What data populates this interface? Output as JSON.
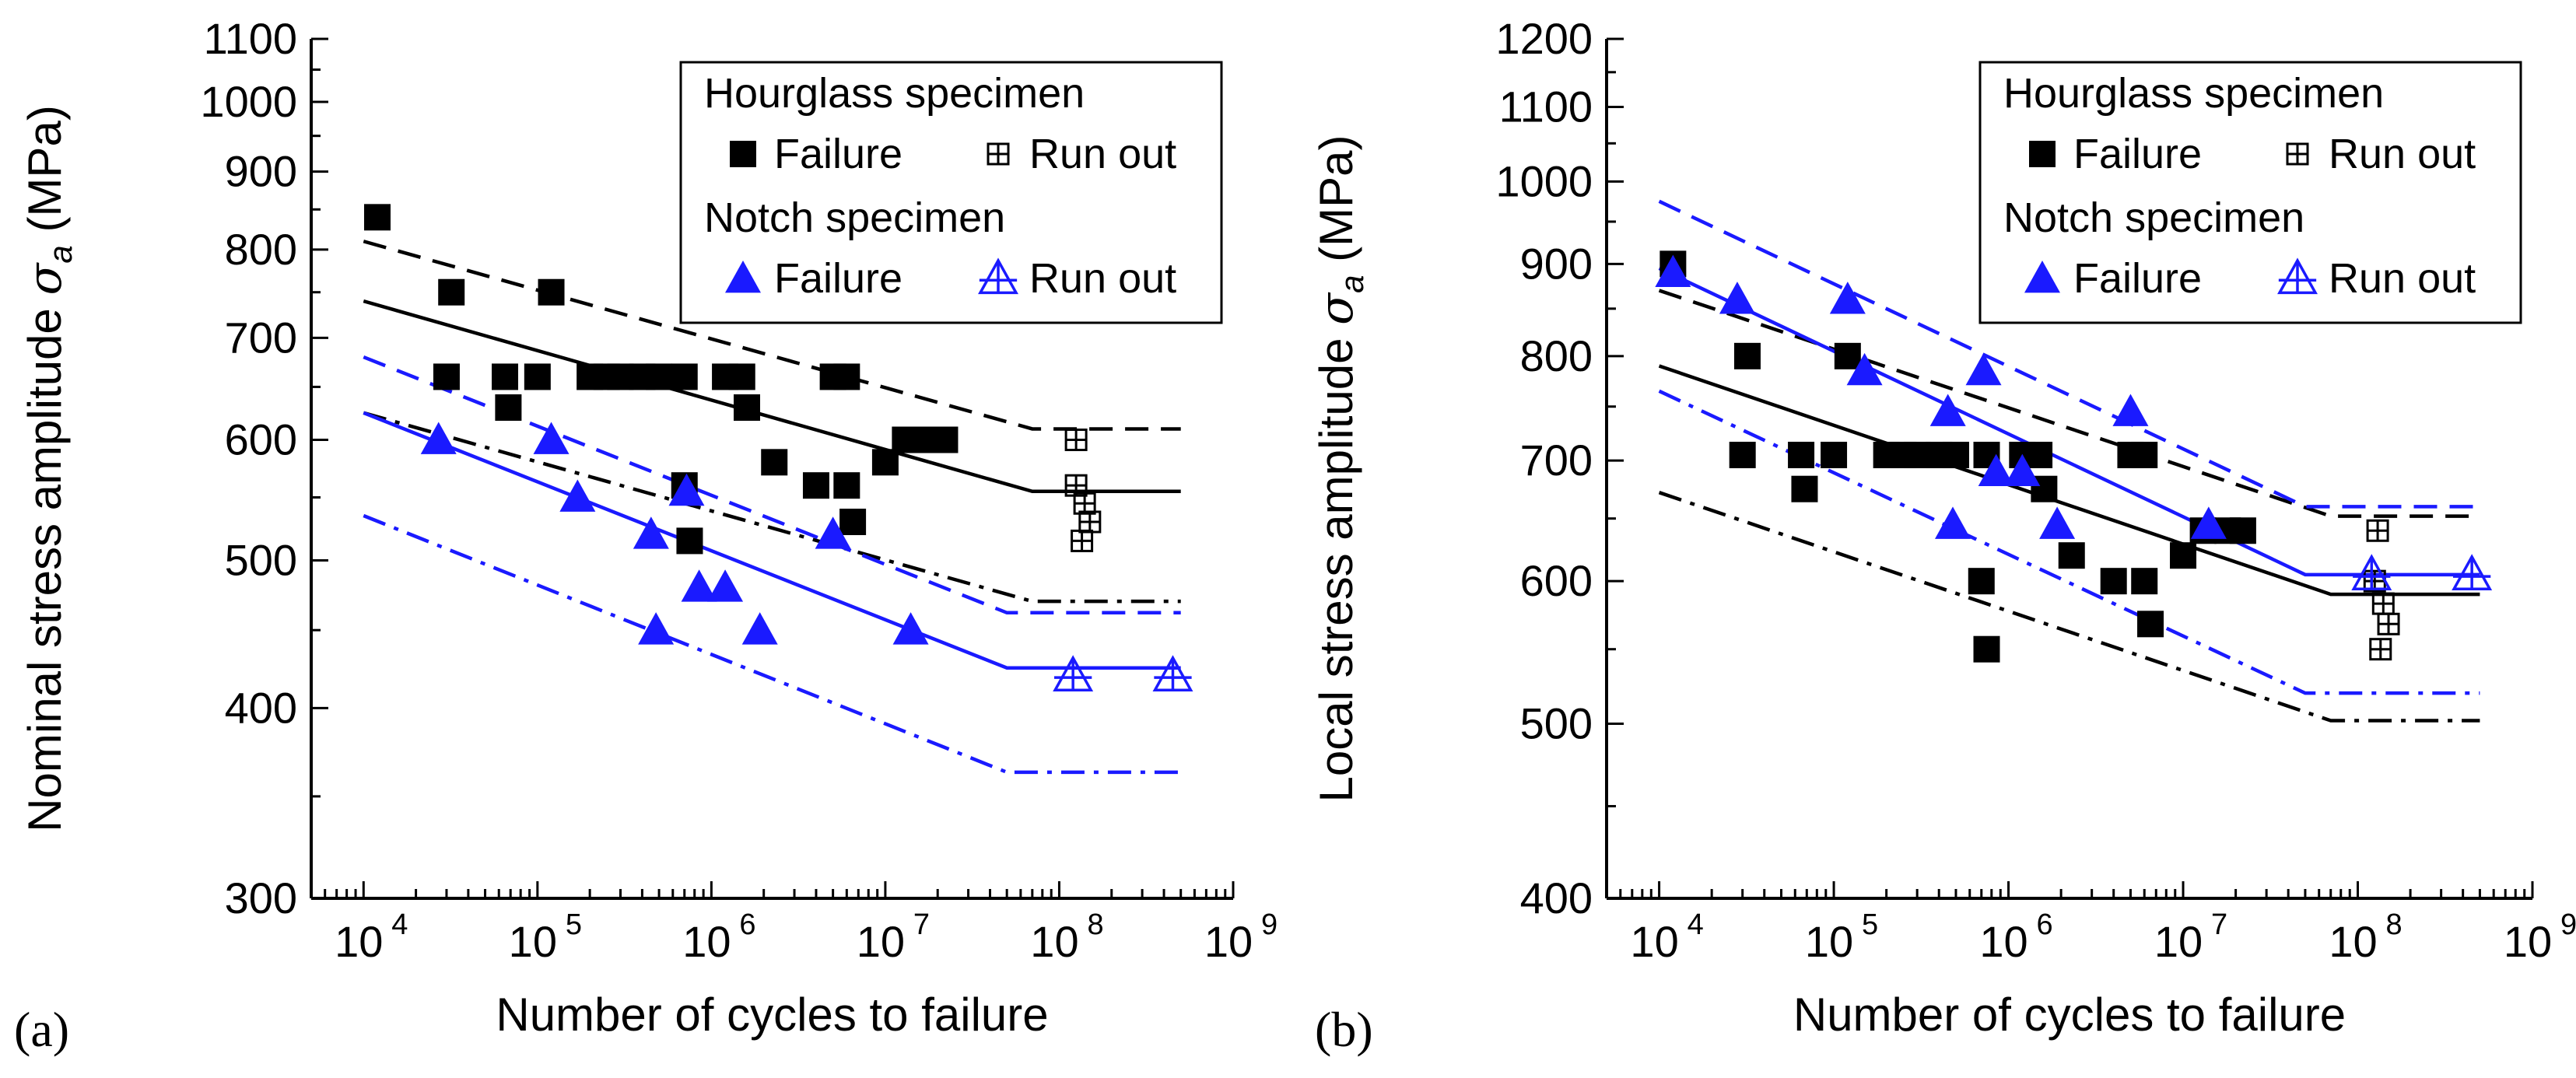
{
  "panel_labels": [
    "(a)",
    "(b)"
  ],
  "colors": {
    "black": "#000000",
    "blue": "#1a1aff"
  },
  "chart_data": [
    {
      "type": "scatter",
      "panel": "(a)",
      "xlabel": "Number of cycles to failure",
      "ylabel": "Nominal stress amplitude σ_a (MPa)",
      "ylabel_main": "Nominal stress amplitude ",
      "ylabel_symbol": "σ",
      "ylabel_sub": "a",
      "ylabel_unit": " (MPa)",
      "x_scale": "log",
      "y_scale": "log",
      "xlim": [
        5000,
        1000000000
      ],
      "ylim": [
        300,
        1100
      ],
      "x_ticks": [
        10000,
        100000,
        1000000,
        10000000,
        100000000,
        1000000000
      ],
      "x_tick_base": "10",
      "x_tick_exponents": [
        "4",
        "5",
        "6",
        "7",
        "8",
        "9"
      ],
      "y_ticks": [
        300,
        400,
        500,
        600,
        700,
        800,
        900,
        1000,
        1100
      ],
      "y_tick_labels": [
        "300",
        "400",
        "500",
        "600",
        "700",
        "800",
        "900",
        "1000",
        "1100"
      ],
      "legend": {
        "position": "top-right",
        "groups": [
          {
            "title": "Hourglass specimen",
            "entries": [
              {
                "label": "Failure",
                "marker": "square-filled",
                "color": "#000000"
              },
              {
                "label": "Run out",
                "marker": "square-plus",
                "color": "#000000"
              }
            ]
          },
          {
            "title": "Notch specimen",
            "entries": [
              {
                "label": "Failure",
                "marker": "triangle-filled",
                "color": "#1a1aff"
              },
              {
                "label": "Run out",
                "marker": "triangle-plus",
                "color": "#1a1aff"
              }
            ]
          }
        ]
      },
      "series": [
        {
          "marker": "square-filled",
          "color": "#000000",
          "points": [
            [
              12000,
              840
            ],
            [
              32000,
              750
            ],
            [
              30000,
              660
            ],
            [
              65000,
              660
            ],
            [
              68000,
              630
            ],
            [
              100000,
              660
            ],
            [
              120000,
              750
            ],
            [
              200000,
              660
            ],
            [
              250000,
              660
            ],
            [
              300000,
              660
            ],
            [
              400000,
              660
            ],
            [
              500000,
              660
            ],
            [
              700000,
              660
            ],
            [
              700000,
              560
            ],
            [
              750000,
              515
            ],
            [
              1200000,
              660
            ],
            [
              1500000,
              660
            ],
            [
              1600000,
              630
            ],
            [
              2300000,
              580
            ],
            [
              4000000,
              560
            ],
            [
              5000000,
              660
            ],
            [
              6000000,
              660
            ],
            [
              6000000,
              560
            ],
            [
              6500000,
              530
            ],
            [
              10000000,
              580
            ],
            [
              13000000,
              600
            ],
            [
              18000000,
              600
            ],
            [
              22000000,
              600
            ]
          ]
        },
        {
          "marker": "square-plus",
          "color": "#000000",
          "points": [
            [
              125000000,
              600
            ],
            [
              125000000,
              560
            ],
            [
              140000000,
              545
            ],
            [
              150000000,
              530
            ],
            [
              135000000,
              515
            ]
          ]
        },
        {
          "marker": "triangle-filled",
          "color": "#1a1aff",
          "points": [
            [
              27000,
              600
            ],
            [
              120000,
              600
            ],
            [
              170000,
              550
            ],
            [
              450000,
              520
            ],
            [
              480000,
              450
            ],
            [
              720000,
              555
            ],
            [
              850000,
              480
            ],
            [
              1200000,
              480
            ],
            [
              1900000,
              450
            ],
            [
              5000000,
              520
            ],
            [
              14000000,
              450
            ]
          ]
        },
        {
          "marker": "triangle-plus",
          "color": "#1a1aff",
          "points": [
            [
              120000000,
              420
            ],
            [
              450000000,
              420
            ]
          ]
        }
      ],
      "lines": [
        {
          "color": "#000000",
          "style": "solid",
          "points": [
            [
              10000,
              740
            ],
            [
              70000000,
              555
            ],
            [
              500000000,
              555
            ]
          ]
        },
        {
          "color": "#000000",
          "style": "dash",
          "points": [
            [
              10000,
              810
            ],
            [
              70000000,
              610
            ],
            [
              500000000,
              610
            ]
          ]
        },
        {
          "color": "#000000",
          "style": "dashdot",
          "points": [
            [
              10000,
              625
            ],
            [
              70000000,
              470
            ],
            [
              500000000,
              470
            ]
          ]
        },
        {
          "color": "#1a1aff",
          "style": "solid",
          "points": [
            [
              10000,
              625
            ],
            [
              50000000,
              425
            ],
            [
              500000000,
              425
            ]
          ]
        },
        {
          "color": "#1a1aff",
          "style": "dash",
          "points": [
            [
              10000,
              680
            ],
            [
              50000000,
              462
            ],
            [
              500000000,
              462
            ]
          ]
        },
        {
          "color": "#1a1aff",
          "style": "dashdot",
          "points": [
            [
              10000,
              535
            ],
            [
              50000000,
              363
            ],
            [
              500000000,
              363
            ]
          ]
        }
      ]
    },
    {
      "type": "scatter",
      "panel": "(b)",
      "xlabel": "Number of cycles to failure",
      "ylabel": "Local stress amplitude σ_a (MPa)",
      "ylabel_main": "Local stress amplitude ",
      "ylabel_symbol": "σ",
      "ylabel_sub": "a",
      "ylabel_unit": " (MPa)",
      "x_scale": "log",
      "y_scale": "log",
      "xlim": [
        5000,
        1000000000
      ],
      "ylim": [
        400,
        1200
      ],
      "x_ticks": [
        10000,
        100000,
        1000000,
        10000000,
        100000000,
        1000000000
      ],
      "x_tick_base": "10",
      "x_tick_exponents": [
        "4",
        "5",
        "6",
        "7",
        "8",
        "9"
      ],
      "y_ticks": [
        400,
        500,
        600,
        700,
        800,
        900,
        1000,
        1100,
        1200
      ],
      "y_tick_labels": [
        "400",
        "500",
        "600",
        "700",
        "800",
        "900",
        "1000",
        "1100",
        "1200"
      ],
      "legend": {
        "position": "top-right",
        "groups": [
          {
            "title": "Hourglass specimen",
            "entries": [
              {
                "label": "Failure",
                "marker": "square-filled",
                "color": "#000000"
              },
              {
                "label": "Run out",
                "marker": "square-plus",
                "color": "#000000"
              }
            ]
          },
          {
            "title": "Notch specimen",
            "entries": [
              {
                "label": "Failure",
                "marker": "triangle-filled",
                "color": "#1a1aff"
              },
              {
                "label": "Run out",
                "marker": "triangle-plus",
                "color": "#1a1aff"
              }
            ]
          }
        ]
      },
      "series": [
        {
          "marker": "square-filled",
          "color": "#000000",
          "points": [
            [
              12000,
              900
            ],
            [
              32000,
              800
            ],
            [
              30000,
              705
            ],
            [
              65000,
              705
            ],
            [
              68000,
              675
            ],
            [
              100000,
              705
            ],
            [
              120000,
              800
            ],
            [
              200000,
              705
            ],
            [
              250000,
              705
            ],
            [
              300000,
              705
            ],
            [
              400000,
              705
            ],
            [
              500000,
              705
            ],
            [
              750000,
              705
            ],
            [
              700000,
              600
            ],
            [
              750000,
              550
            ],
            [
              1200000,
              705
            ],
            [
              1500000,
              705
            ],
            [
              1600000,
              675
            ],
            [
              2300000,
              620
            ],
            [
              4000000,
              600
            ],
            [
              5000000,
              705
            ],
            [
              6000000,
              705
            ],
            [
              6000000,
              600
            ],
            [
              6500000,
              568
            ],
            [
              10000000,
              620
            ],
            [
              13000000,
              640
            ],
            [
              18000000,
              640
            ],
            [
              22000000,
              640
            ]
          ]
        },
        {
          "marker": "square-plus",
          "color": "#000000",
          "points": [
            [
              130000000,
              640
            ],
            [
              125000000,
              600
            ],
            [
              140000000,
              583
            ],
            [
              150000000,
              568
            ],
            [
              135000000,
              550
            ]
          ]
        },
        {
          "marker": "triangle-filled",
          "color": "#1a1aff",
          "points": [
            [
              12000,
              890
            ],
            [
              28000,
              860
            ],
            [
              120000,
              860
            ],
            [
              150000,
              785
            ],
            [
              450000,
              745
            ],
            [
              480000,
              645
            ],
            [
              720000,
              785
            ],
            [
              850000,
              690
            ],
            [
              1200000,
              690
            ],
            [
              1900000,
              645
            ],
            [
              5000000,
              745
            ],
            [
              14000000,
              645
            ]
          ]
        },
        {
          "marker": "triangle-plus",
          "color": "#1a1aff",
          "points": [
            [
              120000000,
              605
            ],
            [
              450000000,
              605
            ]
          ]
        }
      ],
      "lines": [
        {
          "color": "#000000",
          "style": "solid",
          "points": [
            [
              10000,
              790
            ],
            [
              70000000,
              590
            ],
            [
              500000000,
              590
            ]
          ]
        },
        {
          "color": "#000000",
          "style": "dash",
          "points": [
            [
              10000,
              870
            ],
            [
              70000000,
              652
            ],
            [
              500000000,
              652
            ]
          ]
        },
        {
          "color": "#000000",
          "style": "dashdot",
          "points": [
            [
              10000,
              672
            ],
            [
              70000000,
              502
            ],
            [
              500000000,
              502
            ]
          ]
        },
        {
          "color": "#1a1aff",
          "style": "solid",
          "points": [
            [
              10000,
              895
            ],
            [
              50000000,
              605
            ],
            [
              500000000,
              605
            ]
          ]
        },
        {
          "color": "#1a1aff",
          "style": "dash",
          "points": [
            [
              10000,
              975
            ],
            [
              50000000,
              660
            ],
            [
              500000000,
              660
            ]
          ]
        },
        {
          "color": "#1a1aff",
          "style": "dashdot",
          "points": [
            [
              10000,
              765
            ],
            [
              50000000,
              520
            ],
            [
              500000000,
              520
            ]
          ]
        }
      ]
    }
  ]
}
